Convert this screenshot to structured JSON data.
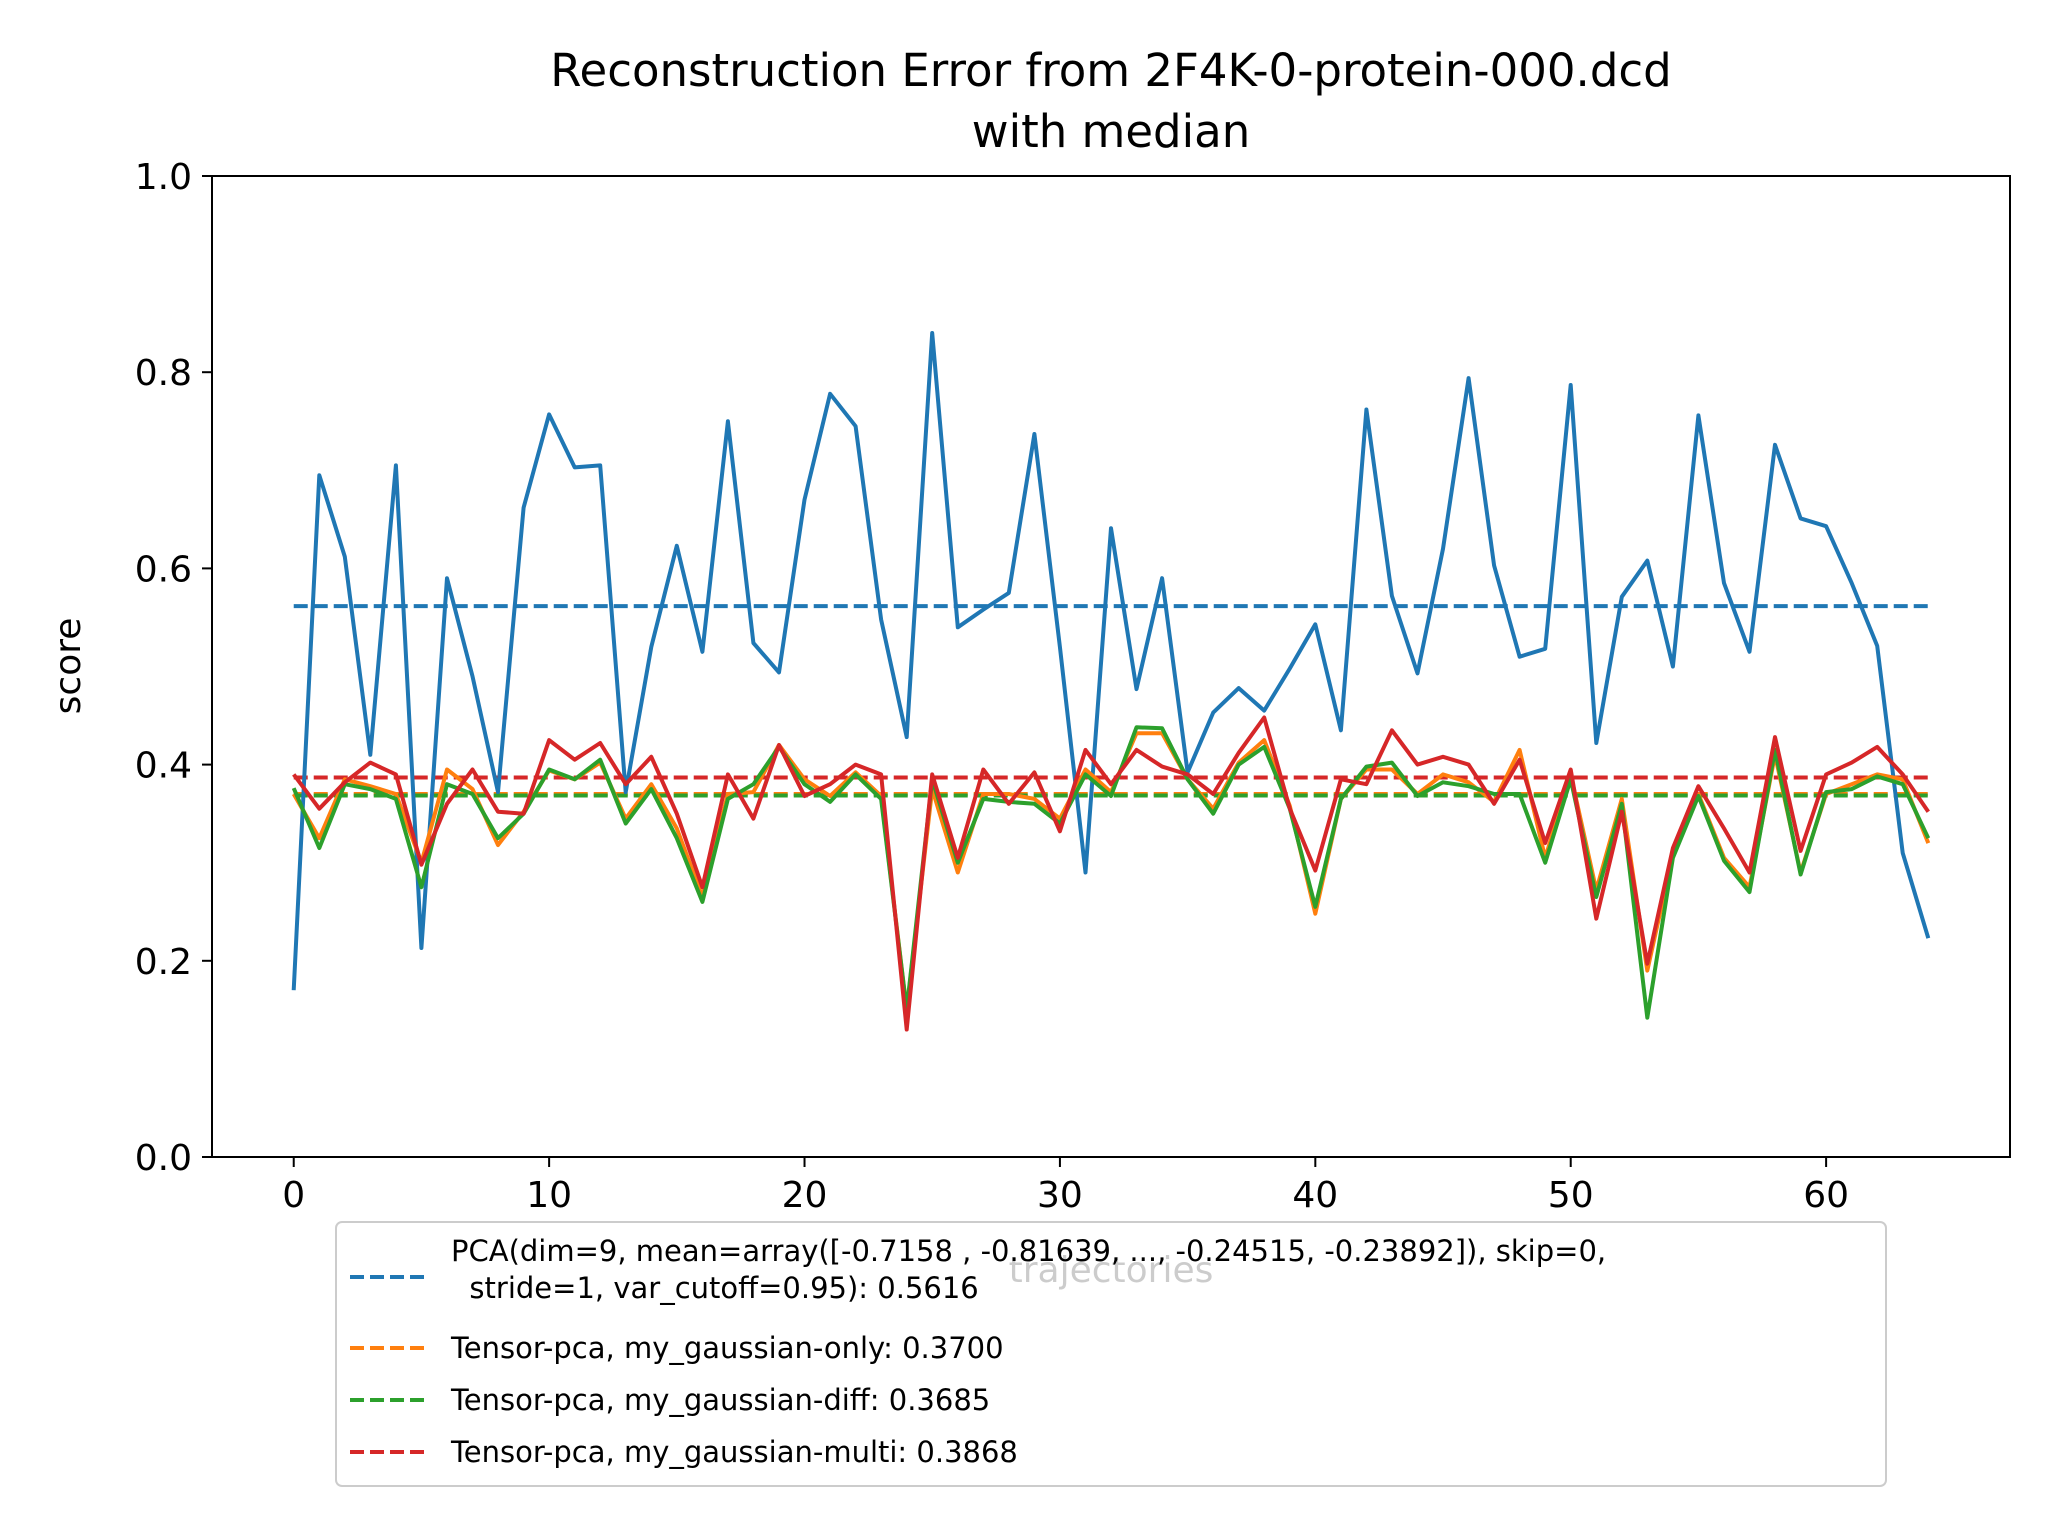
{
  "chart_data": {
    "type": "line",
    "title_lines": [
      "Reconstruction Error from 2F4K-0-protein-000.dcd",
      "with median"
    ],
    "xlabel": "trajectories",
    "ylabel": "score",
    "xlim": [
      -3.2,
      67.2
    ],
    "ylim": [
      0,
      1.0
    ],
    "xticks": [
      0,
      10,
      20,
      30,
      40,
      50,
      60
    ],
    "yticks": [
      0.0,
      0.2,
      0.4,
      0.6,
      0.8,
      1.0
    ],
    "xtick_labels": [
      "0",
      "10",
      "20",
      "30",
      "40",
      "50",
      "60"
    ],
    "ytick_labels": [
      "0.0",
      "0.2",
      "0.4",
      "0.6",
      "0.8",
      "1.0"
    ],
    "grid": false,
    "legend_position": "below",
    "series": [
      {
        "color": "#1f77b4",
        "median": 0.5616,
        "legend_lines": [
          "PCA(dim=9, mean=array([-0.7158 , -0.81639, ..., -0.24515, -0.23892]), skip=0,",
          "  stride=1, var_cutoff=0.95): 0.5616"
        ],
        "values": [
          0.17,
          0.695,
          0.612,
          0.41,
          0.705,
          0.213,
          0.59,
          0.49,
          0.372,
          0.662,
          0.757,
          0.703,
          0.705,
          0.372,
          0.52,
          0.623,
          0.515,
          0.75,
          0.524,
          0.494,
          0.67,
          0.778,
          0.745,
          0.548,
          0.428,
          0.84,
          0.54,
          0.558,
          0.575,
          0.737,
          0.52,
          0.29,
          0.641,
          0.477,
          0.59,
          0.392,
          0.453,
          0.478,
          0.455,
          0.498,
          0.543,
          0.435,
          0.762,
          0.572,
          0.493,
          0.62,
          0.794,
          0.603,
          0.51,
          0.518,
          0.787,
          0.422,
          0.571,
          0.608,
          0.5,
          0.756,
          0.585,
          0.515,
          0.726,
          0.651,
          0.643,
          0.585,
          0.521,
          0.31,
          0.223
        ]
      },
      {
        "color": "#ff7f0e",
        "median": 0.37,
        "legend_lines": [
          "Tensor-pca, my_gaussian-only: 0.3700"
        ],
        "values": [
          0.37,
          0.325,
          0.385,
          0.378,
          0.37,
          0.3,
          0.395,
          0.375,
          0.318,
          0.352,
          0.394,
          0.385,
          0.402,
          0.345,
          0.38,
          0.335,
          0.265,
          0.37,
          0.372,
          0.42,
          0.385,
          0.368,
          0.392,
          0.368,
          0.15,
          0.375,
          0.29,
          0.37,
          0.37,
          0.365,
          0.345,
          0.395,
          0.372,
          0.432,
          0.432,
          0.385,
          0.355,
          0.402,
          0.425,
          0.358,
          0.248,
          0.365,
          0.395,
          0.395,
          0.37,
          0.39,
          0.382,
          0.362,
          0.415,
          0.305,
          0.39,
          0.272,
          0.365,
          0.19,
          0.308,
          0.37,
          0.305,
          0.275,
          0.41,
          0.29,
          0.37,
          0.38,
          0.39,
          0.385,
          0.32
        ]
      },
      {
        "color": "#2ca02c",
        "median": 0.3685,
        "legend_lines": [
          "Tensor-pca, my_gaussian-diff: 0.3685"
        ],
        "values": [
          0.376,
          0.315,
          0.38,
          0.375,
          0.365,
          0.275,
          0.38,
          0.37,
          0.325,
          0.35,
          0.395,
          0.385,
          0.405,
          0.34,
          0.375,
          0.325,
          0.26,
          0.365,
          0.38,
          0.418,
          0.38,
          0.362,
          0.39,
          0.365,
          0.15,
          0.385,
          0.3,
          0.365,
          0.362,
          0.36,
          0.34,
          0.39,
          0.368,
          0.438,
          0.437,
          0.385,
          0.35,
          0.4,
          0.418,
          0.355,
          0.255,
          0.365,
          0.398,
          0.402,
          0.368,
          0.382,
          0.378,
          0.37,
          0.37,
          0.3,
          0.385,
          0.265,
          0.36,
          0.142,
          0.305,
          0.368,
          0.302,
          0.27,
          0.415,
          0.288,
          0.372,
          0.375,
          0.388,
          0.38,
          0.325
        ]
      },
      {
        "color": "#d62728",
        "median": 0.3868,
        "legend_lines": [
          "Tensor-pca, my_gaussian-multi: 0.3868"
        ],
        "values": [
          0.39,
          0.355,
          0.382,
          0.402,
          0.39,
          0.298,
          0.36,
          0.395,
          0.352,
          0.35,
          0.425,
          0.405,
          0.422,
          0.38,
          0.408,
          0.35,
          0.275,
          0.39,
          0.345,
          0.42,
          0.368,
          0.38,
          0.4,
          0.39,
          0.13,
          0.39,
          0.305,
          0.395,
          0.36,
          0.392,
          0.332,
          0.415,
          0.38,
          0.415,
          0.398,
          0.39,
          0.37,
          0.412,
          0.448,
          0.355,
          0.292,
          0.385,
          0.38,
          0.435,
          0.4,
          0.408,
          0.4,
          0.36,
          0.405,
          0.32,
          0.395,
          0.243,
          0.352,
          0.197,
          0.315,
          0.378,
          0.335,
          0.29,
          0.428,
          0.312,
          0.39,
          0.402,
          0.418,
          0.39,
          0.352
        ]
      }
    ]
  }
}
